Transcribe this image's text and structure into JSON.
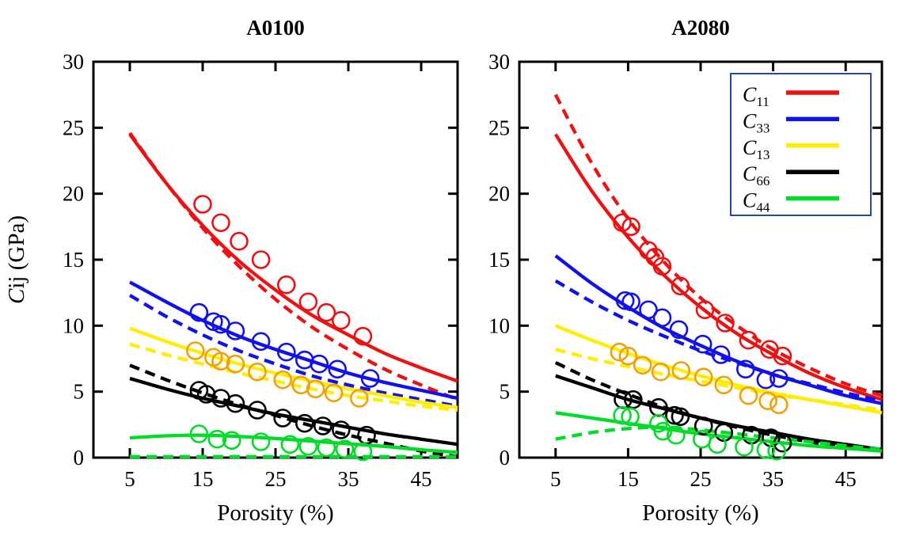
{
  "figure": {
    "background": "#ffffff"
  },
  "ylabel": {
    "italic": "C",
    "rest": "ij (GPa)"
  },
  "xlabel": "Porosity (%)",
  "legend": {
    "border_color": "#26489c",
    "entries": [
      {
        "label_main": "C",
        "label_sub": "11",
        "color": "#ee1111"
      },
      {
        "label_main": "C",
        "label_sub": "33",
        "color": "#1111ee"
      },
      {
        "label_main": "C",
        "label_sub": "13",
        "color": "#ffee00"
      },
      {
        "label_main": "C",
        "label_sub": "66",
        "color": "#000000"
      },
      {
        "label_main": "C",
        "label_sub": "44",
        "color": "#00dc28"
      }
    ]
  },
  "chart_data": [
    {
      "type": "line",
      "title": "A0100",
      "xlabel": "Porosity (%)",
      "ylabel": "Cij (GPa)",
      "xlim": [
        0,
        50
      ],
      "ylim": [
        0,
        30
      ],
      "xticks": [
        5,
        15,
        25,
        35,
        45
      ],
      "yticks": [
        0,
        5,
        10,
        15,
        20,
        25,
        30
      ],
      "x_samples": [
        5,
        10,
        15,
        20,
        25,
        30,
        35,
        40,
        45,
        50
      ],
      "series": [
        {
          "name": "C11",
          "color": "#ee1111",
          "marker_color": "#ee1111",
          "solid_y": [
            24.5,
            20.8,
            17.6,
            14.9,
            12.7,
            10.8,
            9.3,
            7.9,
            6.8,
            5.8
          ],
          "dashed_y": [
            24.6,
            20.8,
            17.4,
            14.5,
            12.0,
            9.9,
            8.2,
            6.7,
            5.5,
            4.4
          ],
          "markers": [
            [
              15,
              19.2
            ],
            [
              17.5,
              17.8
            ],
            [
              20,
              16.4
            ],
            [
              23,
              15.0
            ],
            [
              26.5,
              13.1
            ],
            [
              29.5,
              11.8
            ],
            [
              32,
              11.0
            ],
            [
              34,
              10.4
            ],
            [
              37,
              9.2
            ]
          ]
        },
        {
          "name": "C33",
          "color": "#1111ee",
          "marker_color": "#1111ee",
          "solid_y": [
            13.3,
            11.8,
            10.4,
            9.2,
            8.2,
            7.3,
            6.4,
            5.7,
            5.1,
            4.5
          ],
          "dashed_y": [
            12.3,
            10.7,
            9.3,
            8.1,
            7.1,
            6.2,
            5.5,
            4.9,
            4.4,
            3.9
          ],
          "markers": [
            [
              14.5,
              11.0
            ],
            [
              16.5,
              10.3
            ],
            [
              17.5,
              10.1
            ],
            [
              19.5,
              9.6
            ],
            [
              23,
              8.8
            ],
            [
              26.5,
              8.0
            ],
            [
              29,
              7.4
            ],
            [
              31,
              7.1
            ],
            [
              33.5,
              6.7
            ],
            [
              38,
              6.0
            ]
          ]
        },
        {
          "name": "C13",
          "color": "#ffee00",
          "marker_color": "#f2a007",
          "solid_y": [
            9.8,
            8.8,
            7.9,
            7.1,
            6.4,
            5.8,
            5.2,
            4.7,
            4.2,
            3.8
          ],
          "dashed_y": [
            8.6,
            7.8,
            7.1,
            6.4,
            5.8,
            5.2,
            4.7,
            4.3,
            3.9,
            3.6
          ],
          "markers": [
            [
              14,
              8.1
            ],
            [
              16.5,
              7.6
            ],
            [
              17.5,
              7.3
            ],
            [
              19.5,
              7.1
            ],
            [
              22.5,
              6.5
            ],
            [
              26,
              5.9
            ],
            [
              28.5,
              5.5
            ],
            [
              30.5,
              5.2
            ],
            [
              33,
              4.9
            ],
            [
              36.5,
              4.5
            ]
          ]
        },
        {
          "name": "C66",
          "color": "#000000",
          "marker_color": "#000000",
          "solid_y": [
            6.0,
            5.2,
            4.5,
            3.9,
            3.3,
            2.8,
            2.3,
            1.8,
            1.4,
            1.0
          ],
          "dashed_y": [
            7.0,
            5.9,
            4.9,
            4.0,
            3.2,
            2.4,
            1.7,
            1.1,
            0.5,
            0.07
          ],
          "markers": [
            [
              14.5,
              5.1
            ],
            [
              15.5,
              4.8
            ],
            [
              17.5,
              4.5
            ],
            [
              19.5,
              4.1
            ],
            [
              22.5,
              3.6
            ],
            [
              26,
              3.0
            ],
            [
              29,
              2.6
            ],
            [
              31.5,
              2.4
            ],
            [
              34,
              2.1
            ],
            [
              37.5,
              1.7
            ]
          ]
        },
        {
          "name": "C44",
          "color": "#00dc28",
          "marker_color": "#00dc28",
          "solid_y": [
            1.5,
            1.65,
            1.7,
            1.6,
            1.45,
            1.25,
            1.05,
            0.85,
            0.6,
            0.4
          ],
          "dashed_y": [
            0.07,
            0.07,
            0.07,
            0.07,
            0.07,
            0.07,
            0.07,
            0.07,
            0.07,
            0.07
          ],
          "markers": [
            [
              14.5,
              1.8
            ],
            [
              17,
              1.4
            ],
            [
              19,
              1.3
            ],
            [
              23,
              1.2
            ],
            [
              27,
              1.0
            ],
            [
              29.5,
              0.85
            ],
            [
              32,
              0.75
            ],
            [
              34.5,
              0.65
            ],
            [
              37,
              0.45
            ]
          ]
        }
      ]
    },
    {
      "type": "line",
      "title": "A2080",
      "xlabel": "Porosity (%)",
      "ylabel": "Cij (GPa)",
      "xlim": [
        0,
        50
      ],
      "ylim": [
        0,
        30
      ],
      "xticks": [
        5,
        15,
        25,
        35,
        45
      ],
      "yticks": [
        0,
        5,
        10,
        15,
        20,
        25,
        30
      ],
      "x_samples": [
        5,
        10,
        15,
        20,
        25,
        30,
        35,
        40,
        45,
        50
      ],
      "series": [
        {
          "name": "C11",
          "color": "#ee1111",
          "marker_color": "#ee1111",
          "solid_y": [
            24.5,
            20.2,
            16.7,
            13.8,
            11.4,
            9.4,
            7.8,
            6.4,
            5.3,
            4.4
          ],
          "dashed_y": [
            27.5,
            22.3,
            18.1,
            14.8,
            12.1,
            10.0,
            8.2,
            6.8,
            5.6,
            4.7
          ],
          "markers": [
            [
              14.2,
              17.8
            ],
            [
              15.4,
              17.5
            ],
            [
              17.8,
              15.7
            ],
            [
              18.7,
              15.2
            ],
            [
              19.7,
              14.5
            ],
            [
              22.2,
              13.0
            ],
            [
              25.6,
              11.2
            ],
            [
              28.4,
              10.2
            ],
            [
              31.6,
              8.9
            ],
            [
              34.5,
              8.2
            ],
            [
              36.3,
              7.7
            ]
          ]
        },
        {
          "name": "C33",
          "color": "#1111ee",
          "marker_color": "#1111ee",
          "solid_y": [
            15.3,
            13.2,
            11.4,
            9.8,
            8.5,
            7.3,
            6.3,
            5.5,
            4.7,
            4.1
          ],
          "dashed_y": [
            13.4,
            11.8,
            10.4,
            9.2,
            8.1,
            7.2,
            6.3,
            5.6,
            4.9,
            4.3
          ],
          "markers": [
            [
              14.6,
              11.9
            ],
            [
              15.4,
              11.8
            ],
            [
              17.8,
              11.2
            ],
            [
              19.7,
              10.6
            ],
            [
              22,
              9.7
            ],
            [
              25.3,
              8.6
            ],
            [
              27.8,
              7.8
            ],
            [
              31.2,
              6.7
            ],
            [
              34,
              5.9
            ],
            [
              35.8,
              6.0
            ]
          ]
        },
        {
          "name": "C13",
          "color": "#ffee00",
          "marker_color": "#f2a007",
          "solid_y": [
            10.0,
            8.9,
            7.9,
            7.0,
            6.2,
            5.5,
            4.9,
            4.4,
            3.9,
            3.4
          ],
          "dashed_y": [
            8.2,
            7.5,
            6.9,
            6.3,
            5.8,
            5.3,
            4.8,
            4.4,
            4.0,
            3.6
          ],
          "markers": [
            [
              13.8,
              8.0
            ],
            [
              15,
              7.7
            ],
            [
              17,
              7.0
            ],
            [
              19.5,
              6.5
            ],
            [
              22.3,
              6.6
            ],
            [
              25.4,
              6.1
            ],
            [
              28.2,
              5.5
            ],
            [
              31.6,
              4.7
            ],
            [
              34.3,
              4.3
            ],
            [
              35.8,
              4.0
            ]
          ]
        },
        {
          "name": "C66",
          "color": "#000000",
          "marker_color": "#000000",
          "solid_y": [
            6.2,
            5.3,
            4.4,
            3.7,
            3.0,
            2.4,
            1.9,
            1.4,
            1.0,
            0.6
          ],
          "dashed_y": [
            7.2,
            5.9,
            4.8,
            3.8,
            3.0,
            2.3,
            1.7,
            1.2,
            0.8,
            0.5
          ],
          "markers": [
            [
              14.3,
              4.4
            ],
            [
              15.7,
              4.4
            ],
            [
              19.2,
              3.8
            ],
            [
              21.4,
              3.2
            ],
            [
              22.2,
              3.1
            ],
            [
              25.4,
              2.4
            ],
            [
              28.2,
              1.9
            ],
            [
              32,
              1.7
            ],
            [
              34.7,
              1.5
            ],
            [
              36.3,
              1.1
            ]
          ]
        },
        {
          "name": "C44",
          "color": "#00dc28",
          "marker_color": "#00dc28",
          "solid_y": [
            3.4,
            3.0,
            2.6,
            2.2,
            1.8,
            1.5,
            1.2,
            0.9,
            0.7,
            0.5
          ],
          "dashed_y": [
            1.4,
            1.9,
            2.2,
            2.3,
            2.1,
            1.8,
            1.5,
            1.2,
            0.9,
            0.6
          ],
          "markers": [
            [
              14.2,
              3.2
            ],
            [
              15.3,
              3.1
            ],
            [
              19.2,
              2.6
            ],
            [
              19.8,
              2.0
            ],
            [
              21.6,
              1.7
            ],
            [
              25.2,
              1.4
            ],
            [
              27.3,
              1.0
            ],
            [
              31,
              0.8
            ],
            [
              34,
              0.6
            ],
            [
              35.5,
              0.5
            ]
          ]
        }
      ]
    }
  ]
}
